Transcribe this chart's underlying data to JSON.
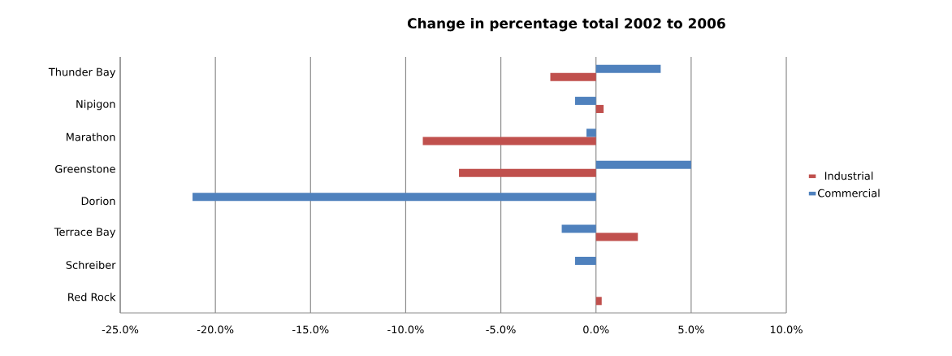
{
  "chart_data": {
    "type": "bar",
    "orientation": "horizontal",
    "title": "Change in percentage total 2002 to 2006",
    "categories": [
      "Thunder Bay",
      "Nipigon",
      "Marathon",
      "Greenstone",
      "Dorion",
      "Terrace Bay",
      "Schreiber",
      "Red Rock"
    ],
    "series": [
      {
        "name": "Industrial",
        "color": "#c0504d",
        "values": [
          -2.4,
          0.4,
          -9.1,
          -7.2,
          null,
          2.2,
          null,
          0.3
        ]
      },
      {
        "name": "Commercial",
        "color": "#4f81bd",
        "values": [
          3.4,
          -1.1,
          -0.5,
          5.0,
          -21.2,
          -1.8,
          -1.1,
          null
        ]
      }
    ],
    "xlim": [
      -25,
      10
    ],
    "xticks": [
      {
        "value": -25,
        "label": "-25.0%"
      },
      {
        "value": -20,
        "label": "-20.0%"
      },
      {
        "value": -15,
        "label": "-15.0%"
      },
      {
        "value": -10,
        "label": "-10.0%"
      },
      {
        "value": -5,
        "label": "-5.0%"
      },
      {
        "value": 0,
        "label": "0.0%"
      },
      {
        "value": 5,
        "label": "5.0%"
      },
      {
        "value": 10,
        "label": "10.0%"
      }
    ],
    "grid": "x",
    "legend": "right"
  }
}
